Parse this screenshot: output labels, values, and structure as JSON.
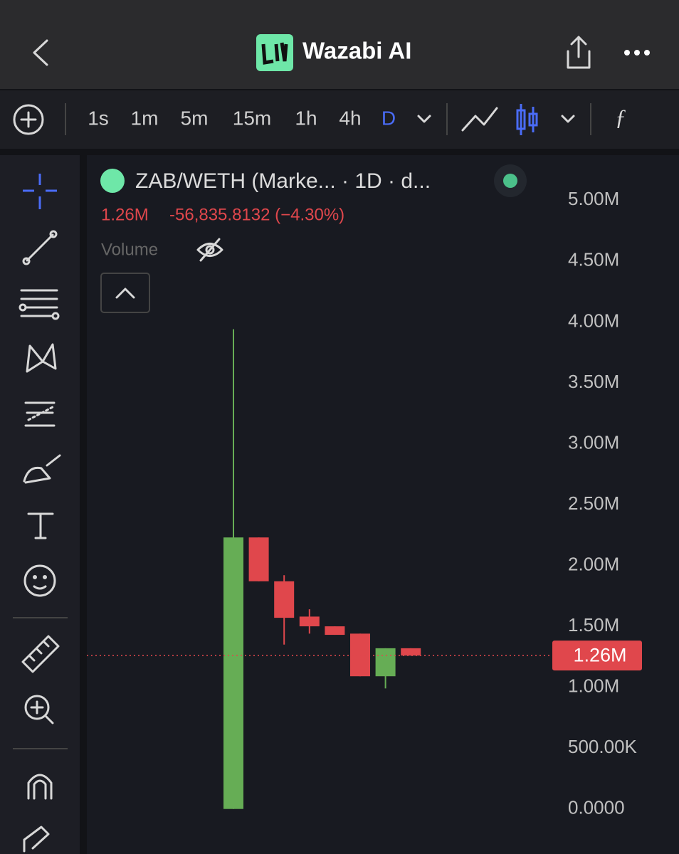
{
  "header": {
    "title": "Wazabi AI"
  },
  "toolbar": {
    "intervals": [
      "1s",
      "1m",
      "5m",
      "15m",
      "1h",
      "4h",
      "D"
    ]
  },
  "chart_data": {
    "type": "candlestick",
    "title": "ZAB/WETH (Marke... · 1D · d...",
    "change": "-56,835.8132 (−4.30%)",
    "indicator": "Volume",
    "categories": [
      null,
      null,
      null,
      null,
      null,
      null,
      null,
      null
    ],
    "open": [
      0,
      2230000,
      1870000,
      1580000,
      1500000,
      1440000,
      1090000,
      1320000
    ],
    "high": [
      3940000,
      2230000,
      1920000,
      1640000,
      1500000,
      1440000,
      1320000,
      1320000
    ],
    "low": [
      0,
      1870000,
      1350000,
      1440000,
      1430000,
      1090000,
      990000,
      1260000
    ],
    "close": [
      2230000,
      1870000,
      1570000,
      1500000,
      1430000,
      1090000,
      1320000,
      1260000
    ],
    "up_color": "#66ad55",
    "down_color": "#e0474c",
    "last_price": {
      "value": 1260000,
      "label": "1.26M"
    },
    "ylim": [
      -370000,
      5370000
    ],
    "yticks": [
      {
        "value": 0,
        "label": "0.0000"
      },
      {
        "value": 500000,
        "label": "500.00K"
      },
      {
        "value": 1000000,
        "label": "1.00M"
      },
      {
        "value": 1500000,
        "label": "1.50M"
      },
      {
        "value": 2000000,
        "label": "2.00M"
      },
      {
        "value": 2500000,
        "label": "2.50M"
      },
      {
        "value": 3000000,
        "label": "3.00M"
      },
      {
        "value": 3500000,
        "label": "3.50M"
      },
      {
        "value": 4000000,
        "label": "4.00M"
      },
      {
        "value": 4500000,
        "label": "4.50M"
      },
      {
        "value": 5000000,
        "label": "5.00M"
      }
    ],
    "grid": false
  }
}
